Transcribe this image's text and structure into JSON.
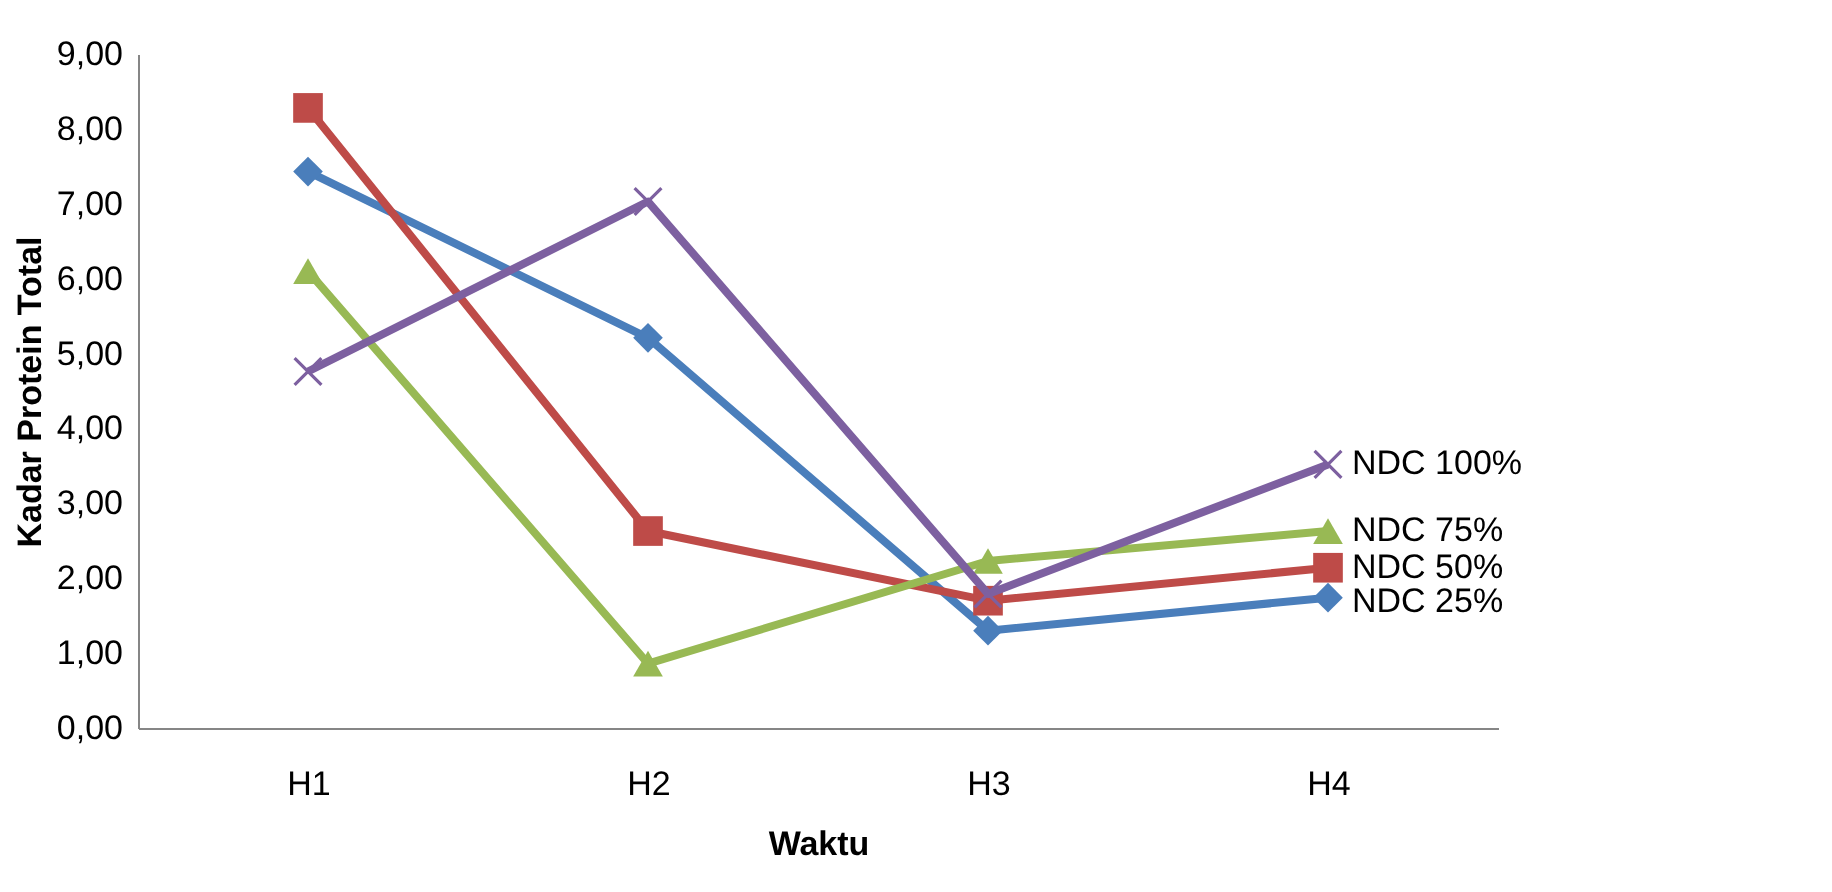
{
  "chart_data": {
    "type": "line",
    "xlabel": "Waktu",
    "ylabel": "Kadar Protein Total",
    "categories": [
      "H1",
      "H2",
      "H3",
      "H4"
    ],
    "series": [
      {
        "name": "NDC 25%",
        "color": "#4a7ebb",
        "marker": "diamond",
        "values": [
          7.43,
          5.21,
          1.3,
          1.74
        ]
      },
      {
        "name": "NDC 50%",
        "color": "#be4b48",
        "marker": "square",
        "values": [
          8.28,
          2.63,
          1.7,
          2.14
        ]
      },
      {
        "name": "NDC 75%",
        "color": "#98b954",
        "marker": "triangle",
        "values": [
          6.1,
          0.86,
          2.23,
          2.63
        ]
      },
      {
        "name": "NDC 100%",
        "color": "#7d60a0",
        "marker": "cross",
        "values": [
          4.76,
          7.03,
          1.79,
          3.52
        ]
      }
    ],
    "ylim": [
      0,
      9
    ],
    "yticks": [
      {
        "value": 0,
        "label": "0,00"
      },
      {
        "value": 1,
        "label": "1,00"
      },
      {
        "value": 2,
        "label": "2,00"
      },
      {
        "value": 3,
        "label": "3,00"
      },
      {
        "value": 4,
        "label": "4,00"
      },
      {
        "value": 5,
        "label": "5,00"
      },
      {
        "value": 6,
        "label": "6,00"
      },
      {
        "value": 7,
        "label": "7,00"
      },
      {
        "value": 8,
        "label": "8,00"
      },
      {
        "value": 9,
        "label": "9,00"
      }
    ],
    "grid": false,
    "legend": false,
    "line_style": "solid"
  }
}
